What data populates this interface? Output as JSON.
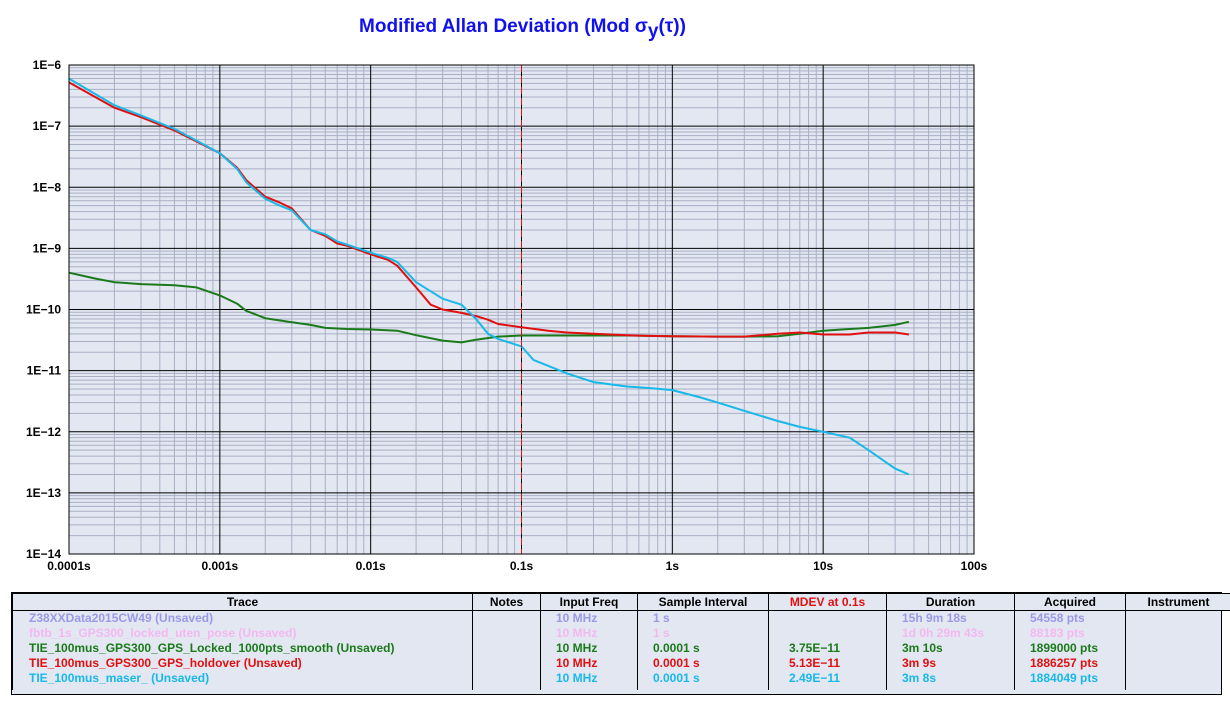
{
  "title": {
    "main": "Modified Allan Deviation (Mod σ",
    "sub": "y",
    "tail": "(τ))"
  },
  "chart_data": {
    "type": "line",
    "title": "Modified Allan Deviation (Mod σy(τ))",
    "x_scale": "log",
    "y_scale": "log",
    "xlim": [
      0.0001,
      100
    ],
    "ylim": [
      1e-14,
      1e-06
    ],
    "x_tick_labels": [
      "0.0001s",
      "0.001s",
      "0.01s",
      "0.1s",
      "1s",
      "10s",
      "100s"
    ],
    "y_tick_labels": [
      "1E−6",
      "1E−7",
      "1E−8",
      "1E−9",
      "1E−10",
      "1E−11",
      "1E−12",
      "1E−13",
      "1E−14"
    ],
    "grid": true,
    "marker_line": {
      "x": 0.1,
      "style": "dashed",
      "color": "#e01010"
    },
    "series": [
      {
        "name": "TIE_100mus_GPS300_GPS_Locked_1000pts_smooth",
        "color": "#1a7a1a",
        "x": [
          0.0001,
          0.00015,
          0.0002,
          0.0003,
          0.0005,
          0.0007,
          0.001,
          0.0013,
          0.0015,
          0.002,
          0.003,
          0.004,
          0.005,
          0.007,
          0.01,
          0.015,
          0.02,
          0.03,
          0.04,
          0.05,
          0.07,
          0.1,
          0.15,
          0.2,
          0.3,
          0.5,
          0.7,
          1,
          2,
          3,
          5,
          7,
          10,
          15,
          20,
          30,
          37
        ],
        "y": [
          4e-10,
          3.2e-10,
          2.8e-10,
          2.6e-10,
          2.5e-10,
          2.3e-10,
          1.7e-10,
          1.25e-10,
          9.5e-11,
          7.2e-11,
          6.2e-11,
          5.6e-11,
          5e-11,
          4.8e-11,
          4.7e-11,
          4.5e-11,
          3.8e-11,
          3.1e-11,
          2.9e-11,
          3.2e-11,
          3.6e-11,
          3.75e-11,
          3.75e-11,
          3.75e-11,
          3.75e-11,
          3.75e-11,
          3.7e-11,
          3.65e-11,
          3.6e-11,
          3.6e-11,
          3.65e-11,
          4e-11,
          4.5e-11,
          4.8e-11,
          5e-11,
          5.6e-11,
          6.3e-11
        ]
      },
      {
        "name": "TIE_100mus_GPS300_GPS_holdover",
        "color": "#e01010",
        "x": [
          0.0001,
          0.0002,
          0.0003,
          0.0005,
          0.0007,
          0.001,
          0.0013,
          0.0015,
          0.002,
          0.0025,
          0.003,
          0.004,
          0.005,
          0.006,
          0.007,
          0.01,
          0.013,
          0.015,
          0.02,
          0.025,
          0.03,
          0.04,
          0.05,
          0.06,
          0.07,
          0.1,
          0.15,
          0.2,
          0.3,
          0.5,
          0.7,
          1,
          2,
          3,
          5,
          7,
          10,
          15,
          20,
          30,
          37
        ],
        "y": [
          5.2e-07,
          2e-07,
          1.4e-07,
          8.5e-08,
          5.6e-08,
          3.6e-08,
          2.1e-08,
          1.3e-08,
          7e-09,
          5.6e-09,
          4.5e-09,
          2e-09,
          1.6e-09,
          1.2e-09,
          1.1e-09,
          8e-10,
          6.5e-10,
          5.2e-10,
          2.3e-10,
          1.2e-10,
          1e-10,
          8.8e-11,
          7.8e-11,
          6.8e-11,
          5.8e-11,
          5.13e-11,
          4.5e-11,
          4.2e-11,
          4e-11,
          3.8e-11,
          3.7e-11,
          3.65e-11,
          3.6e-11,
          3.6e-11,
          4e-11,
          4.2e-11,
          3.9e-11,
          3.9e-11,
          4.2e-11,
          4.2e-11,
          3.9e-11
        ]
      },
      {
        "name": "TIE_100mus_maser_",
        "color": "#18b8e8",
        "x": [
          0.0001,
          0.0002,
          0.0003,
          0.0005,
          0.0007,
          0.001,
          0.0013,
          0.0015,
          0.002,
          0.0025,
          0.003,
          0.004,
          0.005,
          0.006,
          0.007,
          0.01,
          0.013,
          0.015,
          0.02,
          0.03,
          0.04,
          0.05,
          0.06,
          0.07,
          0.1,
          0.12,
          0.15,
          0.2,
          0.3,
          0.5,
          0.7,
          1,
          1.5,
          2,
          3,
          5,
          7,
          10,
          15,
          20,
          30,
          37
        ],
        "y": [
          6e-07,
          2.2e-07,
          1.5e-07,
          9e-08,
          5.8e-08,
          3.6e-08,
          2e-08,
          1.2e-08,
          6.5e-09,
          5e-09,
          4.2e-09,
          2e-09,
          1.7e-09,
          1.3e-09,
          1.15e-09,
          8.5e-10,
          7e-10,
          6e-10,
          2.8e-10,
          1.5e-10,
          1.2e-10,
          7e-11,
          4e-11,
          3.3e-11,
          2.49e-11,
          1.5e-11,
          1.2e-11,
          9e-12,
          6.5e-12,
          5.5e-12,
          5.2e-12,
          4.8e-12,
          3.7e-12,
          3e-12,
          2.2e-12,
          1.5e-12,
          1.2e-12,
          1e-12,
          8e-13,
          5e-13,
          2.5e-13,
          2e-13
        ]
      }
    ]
  },
  "table": {
    "headers": {
      "trace": "Trace",
      "notes": "Notes",
      "input_freq": "Input Freq",
      "sample_interval": "Sample Interval",
      "mdev": "MDEV at 0.1s",
      "duration": "Duration",
      "acquired": "Acquired",
      "instrument": "Instrument"
    },
    "header_colors": {
      "mdev": "#e01010"
    },
    "rows": [
      {
        "color": "#9a9ae6",
        "trace": "Z38XXData2015CW49 (Unsaved)",
        "notes": "",
        "input_freq": "10 MHz",
        "sample_interval": "1 s",
        "mdev": "",
        "duration": "15h 9m 18s",
        "acquired": "54558 pts",
        "instrument": ""
      },
      {
        "color": "#f4b8f0",
        "trace": "fbtb_1s_GPS300_locked_uten_pose  (Unsaved)",
        "notes": "",
        "input_freq": "10 MHz",
        "sample_interval": "1 s",
        "mdev": "",
        "duration": "1d 0h 29m 43s",
        "acquired": "88183 pts",
        "instrument": ""
      },
      {
        "color": "#1a7a1a",
        "trace": "TIE_100mus_GPS300_GPS_Locked_1000pts_smooth  (Unsaved)",
        "notes": "",
        "input_freq": "10 MHz",
        "sample_interval": "0.0001 s",
        "mdev": "3.75E−11",
        "duration": "3m 10s",
        "acquired": "1899000 pts",
        "instrument": ""
      },
      {
        "color": "#e01010",
        "trace": "TIE_100mus_GPS300_GPS_holdover  (Unsaved)",
        "notes": "",
        "input_freq": "10 MHz",
        "sample_interval": "0.0001 s",
        "mdev": "5.13E−11",
        "duration": "3m 9s",
        "acquired": "1886257 pts",
        "instrument": ""
      },
      {
        "color": "#18b8e8",
        "trace": "TIE_100mus_maser_ (Unsaved)",
        "notes": "",
        "input_freq": "10 MHz",
        "sample_interval": "0.0001 s",
        "mdev": "2.49E−11",
        "duration": "3m 8s",
        "acquired": "1884049 pts",
        "instrument": ""
      }
    ]
  }
}
